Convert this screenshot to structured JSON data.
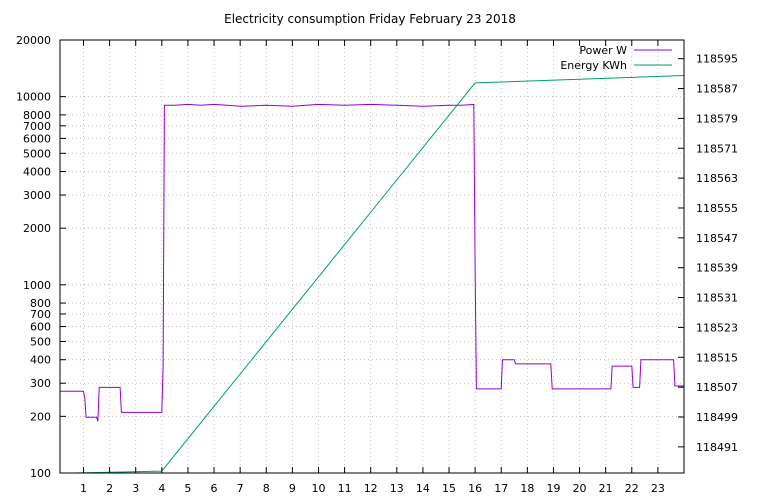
{
  "chart_data": {
    "type": "line",
    "title": "Electricity consumption Friday February 23 2018",
    "x": {
      "range": [
        0.1,
        24
      ],
      "ticks": [
        1,
        2,
        3,
        4,
        5,
        6,
        7,
        8,
        9,
        10,
        11,
        12,
        13,
        14,
        15,
        16,
        17,
        18,
        19,
        20,
        21,
        22,
        23
      ]
    },
    "y_left": {
      "scale": "log",
      "range": [
        100,
        20000
      ],
      "ticks": [
        100,
        200,
        300,
        400,
        500,
        600,
        700,
        800,
        1000,
        2000,
        3000,
        4000,
        5000,
        6000,
        7000,
        8000,
        10000,
        20000
      ]
    },
    "y_right": {
      "range": [
        118484,
        118600
      ],
      "ticks": [
        118491,
        118499,
        118507,
        118515,
        118523,
        118531,
        118539,
        118547,
        118555,
        118563,
        118571,
        118579,
        118587,
        118595
      ]
    },
    "grid": true,
    "legend_placement": "top-right",
    "series": [
      {
        "name": "Power W",
        "color": "#9400d3",
        "axis": "left",
        "points": [
          [
            0.1,
            272
          ],
          [
            1.0,
            272
          ],
          [
            1.05,
            250
          ],
          [
            1.1,
            198
          ],
          [
            1.5,
            198
          ],
          [
            1.55,
            188
          ],
          [
            1.6,
            285
          ],
          [
            2.4,
            285
          ],
          [
            2.45,
            210
          ],
          [
            4.0,
            210
          ],
          [
            4.05,
            370
          ],
          [
            4.1,
            9000
          ],
          [
            4.5,
            9000
          ],
          [
            5.0,
            9100
          ],
          [
            5.5,
            9000
          ],
          [
            6.0,
            9100
          ],
          [
            6.5,
            9000
          ],
          [
            7.0,
            8900
          ],
          [
            8.0,
            9000
          ],
          [
            9.0,
            8900
          ],
          [
            10.0,
            9100
          ],
          [
            11.0,
            9000
          ],
          [
            12.0,
            9100
          ],
          [
            13.0,
            9000
          ],
          [
            14.0,
            8900
          ],
          [
            15.0,
            9000
          ],
          [
            15.5,
            9000
          ],
          [
            15.95,
            9100
          ],
          [
            16.0,
            1250
          ],
          [
            16.05,
            280
          ],
          [
            17.0,
            280
          ],
          [
            17.05,
            400
          ],
          [
            17.5,
            400
          ],
          [
            17.55,
            380
          ],
          [
            18.9,
            380
          ],
          [
            18.95,
            280
          ],
          [
            21.2,
            280
          ],
          [
            21.25,
            370
          ],
          [
            22.0,
            370
          ],
          [
            22.05,
            285
          ],
          [
            22.3,
            285
          ],
          [
            22.35,
            400
          ],
          [
            23.6,
            400
          ],
          [
            23.65,
            290
          ],
          [
            24.0,
            290
          ]
        ]
      },
      {
        "name": "Energy KWh",
        "color": "#009e73",
        "axis": "right",
        "points": [
          [
            0.6,
            118484
          ],
          [
            4.0,
            118484.5
          ],
          [
            16.0,
            118588.5
          ],
          [
            24.0,
            118590.5
          ]
        ]
      }
    ]
  }
}
